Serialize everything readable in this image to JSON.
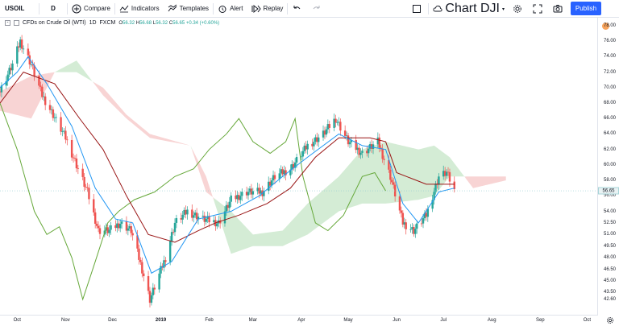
{
  "toolbar": {
    "symbol": "USOIL",
    "interval": "D",
    "compare": "Compare",
    "indicators": "Indicators",
    "templates": "Templates",
    "alert": "Alert",
    "replay": "Replay",
    "layout_name": "Chart DJI",
    "publish": "Publish"
  },
  "legend": {
    "title": "CFDs on Crude Oil (WTI)",
    "interval": "1D",
    "exchange": "FXCM",
    "o_label": "O",
    "o": "56.32",
    "h_label": "H",
    "h": "56.68",
    "l_label": "L",
    "l": "56.32",
    "c_label": "C",
    "c": "56.65",
    "change": "+0.34 (+0.60%)"
  },
  "colors": {
    "up": "#26a69a",
    "down": "#ef5350",
    "tenkan": "#2196f3",
    "kijun": "#991515",
    "chikou": "#66a83a",
    "kumo_up": "#d4ecd5",
    "kumo_down": "#f8d4d4",
    "accent": "#2962ff"
  },
  "last_price": "56.65",
  "chart_data": {
    "type": "candlestick",
    "indicator": "Ichimoku Cloud",
    "x_ticks": [
      "Oct",
      "Nov",
      "Dec",
      "2019",
      "Feb",
      "Mar",
      "Apr",
      "May",
      "Jun",
      "Jul",
      "Aug",
      "Sep",
      "Oct"
    ],
    "y_ticks": [
      "78.00",
      "76.00",
      "74.00",
      "72.00",
      "70.00",
      "68.00",
      "66.00",
      "64.00",
      "62.00",
      "60.00",
      "58.00",
      "56.00",
      "54.00",
      "52.50",
      "51.00",
      "49.50",
      "48.00",
      "46.50",
      "45.00",
      "43.50",
      "42.60"
    ],
    "price_path": [
      [
        "2018-09-20",
        69.5
      ],
      [
        "2018-09-28",
        73.0
      ],
      [
        "2018-10-03",
        76.0
      ],
      [
        "2018-10-10",
        73.0
      ],
      [
        "2018-10-17",
        69.0
      ],
      [
        "2018-10-24",
        66.5
      ],
      [
        "2018-11-01",
        63.5
      ],
      [
        "2018-11-08",
        60.0
      ],
      [
        "2018-11-15",
        56.5
      ],
      [
        "2018-11-22",
        51.5
      ],
      [
        "2018-11-29",
        51.5
      ],
      [
        "2018-12-06",
        52.5
      ],
      [
        "2018-12-13",
        51.5
      ],
      [
        "2018-12-20",
        46.5
      ],
      [
        "2018-12-25",
        42.6
      ],
      [
        "2019-01-04",
        48.0
      ],
      [
        "2019-01-10",
        52.5
      ],
      [
        "2019-01-18",
        54.0
      ],
      [
        "2019-01-28",
        53.0
      ],
      [
        "2019-02-07",
        52.5
      ],
      [
        "2019-02-15",
        55.5
      ],
      [
        "2019-02-25",
        56.5
      ],
      [
        "2019-03-07",
        56.5
      ],
      [
        "2019-03-15",
        58.5
      ],
      [
        "2019-03-25",
        59.5
      ],
      [
        "2019-04-05",
        62.5
      ],
      [
        "2019-04-15",
        64.0
      ],
      [
        "2019-04-23",
        66.0
      ],
      [
        "2019-05-01",
        63.0
      ],
      [
        "2019-05-10",
        61.5
      ],
      [
        "2019-05-20",
        63.0
      ],
      [
        "2019-05-28",
        58.5
      ],
      [
        "2019-06-05",
        52.5
      ],
      [
        "2019-06-12",
        51.5
      ],
      [
        "2019-06-20",
        53.5
      ],
      [
        "2019-06-28",
        58.5
      ],
      [
        "2019-07-03",
        59.0
      ],
      [
        "2019-07-08",
        56.65
      ]
    ],
    "tenkan": [
      [
        "2018-09-20",
        70.0
      ],
      [
        "2018-10-01",
        72.0
      ],
      [
        "2018-10-08",
        74.0
      ],
      [
        "2018-10-20",
        70.5
      ],
      [
        "2018-11-05",
        65.0
      ],
      [
        "2018-11-20",
        57.0
      ],
      [
        "2018-12-03",
        53.0
      ],
      [
        "2018-12-14",
        52.5
      ],
      [
        "2018-12-26",
        46.0
      ],
      [
        "2019-01-08",
        47.5
      ],
      [
        "2019-01-25",
        53.0
      ],
      [
        "2019-02-15",
        54.0
      ],
      [
        "2019-03-05",
        56.0
      ],
      [
        "2019-03-20",
        58.5
      ],
      [
        "2019-04-05",
        61.0
      ],
      [
        "2019-04-25",
        64.0
      ],
      [
        "2019-05-10",
        62.5
      ],
      [
        "2019-05-25",
        62.0
      ],
      [
        "2019-06-05",
        55.0
      ],
      [
        "2019-06-15",
        52.5
      ],
      [
        "2019-06-28",
        56.5
      ],
      [
        "2019-07-08",
        57.0
      ]
    ],
    "kijun": [
      [
        "2018-09-20",
        68.0
      ],
      [
        "2018-10-05",
        72.0
      ],
      [
        "2018-10-25",
        70.5
      ],
      [
        "2018-11-10",
        66.0
      ],
      [
        "2018-11-25",
        62.0
      ],
      [
        "2018-12-10",
        56.0
      ],
      [
        "2018-12-24",
        51.0
      ],
      [
        "2019-01-10",
        50.0
      ],
      [
        "2019-01-25",
        51.5
      ],
      [
        "2019-02-05",
        52.5
      ],
      [
        "2019-02-20",
        53.5
      ],
      [
        "2019-03-10",
        55.0
      ],
      [
        "2019-03-25",
        57.0
      ],
      [
        "2019-04-10",
        61.0
      ],
      [
        "2019-04-25",
        63.5
      ],
      [
        "2019-05-15",
        63.5
      ],
      [
        "2019-05-25",
        63.0
      ],
      [
        "2019-06-01",
        59.0
      ],
      [
        "2019-06-20",
        57.5
      ],
      [
        "2019-07-08",
        57.5
      ]
    ],
    "chikou": [
      [
        "2018-09-20",
        68.0
      ],
      [
        "2018-10-01",
        62.0
      ],
      [
        "2018-10-12",
        54.0
      ],
      [
        "2018-10-20",
        51.0
      ],
      [
        "2018-10-28",
        52.0
      ],
      [
        "2018-11-05",
        48.0
      ],
      [
        "2018-11-12",
        42.6
      ],
      [
        "2018-11-20",
        47.5
      ],
      [
        "2018-11-28",
        52.5
      ],
      [
        "2018-12-05",
        54.0
      ],
      [
        "2018-12-15",
        55.5
      ],
      [
        "2018-12-28",
        56.5
      ],
      [
        "2019-01-10",
        58.5
      ],
      [
        "2019-01-22",
        59.5
      ],
      [
        "2019-02-01",
        62.0
      ],
      [
        "2019-02-12",
        64.0
      ],
      [
        "2019-02-20",
        66.0
      ],
      [
        "2019-03-01",
        63.0
      ],
      [
        "2019-03-12",
        61.5
      ],
      [
        "2019-03-22",
        63.0
      ],
      [
        "2019-03-28",
        66.0
      ],
      [
        "2019-04-02",
        58.5
      ],
      [
        "2019-04-10",
        52.5
      ],
      [
        "2019-04-18",
        51.5
      ],
      [
        "2019-04-28",
        53.5
      ],
      [
        "2019-05-10",
        58.5
      ],
      [
        "2019-05-18",
        59.0
      ],
      [
        "2019-05-25",
        56.65
      ]
    ],
    "span_a": [
      [
        "2018-09-20",
        67.0
      ],
      [
        "2018-10-10",
        66.0
      ],
      [
        "2018-10-25",
        72.0
      ],
      [
        "2018-11-08",
        73.5
      ],
      [
        "2018-11-25",
        69.0
      ],
      [
        "2018-12-10",
        66.0
      ],
      [
        "2018-12-25",
        63.5
      ],
      [
        "2019-01-20",
        62.5
      ],
      [
        "2019-01-30",
        56.5
      ],
      [
        "2019-02-15",
        54.0
      ],
      [
        "2019-03-01",
        51.0
      ],
      [
        "2019-03-20",
        51.5
      ],
      [
        "2019-04-05",
        55.0
      ],
      [
        "2019-04-25",
        58.5
      ],
      [
        "2019-05-10",
        62.0
      ],
      [
        "2019-05-25",
        63.0
      ],
      [
        "2019-06-15",
        62.0
      ],
      [
        "2019-06-25",
        62.5
      ],
      [
        "2019-07-05",
        61.0
      ],
      [
        "2019-07-20",
        57.0
      ],
      [
        "2019-08-10",
        58.0
      ]
    ],
    "span_b": [
      [
        "2018-09-20",
        69.5
      ],
      [
        "2018-10-10",
        71.5
      ],
      [
        "2018-10-25",
        72.0
      ],
      [
        "2018-11-08",
        72.0
      ],
      [
        "2018-11-25",
        70.0
      ],
      [
        "2018-12-10",
        66.5
      ],
      [
        "2018-12-25",
        64.0
      ],
      [
        "2019-01-20",
        62.5
      ],
      [
        "2019-01-30",
        58.5
      ],
      [
        "2019-02-15",
        48.5
      ],
      [
        "2019-03-01",
        49.5
      ],
      [
        "2019-03-20",
        49.5
      ],
      [
        "2019-04-05",
        51.0
      ],
      [
        "2019-04-25",
        54.0
      ],
      [
        "2019-05-10",
        55.0
      ],
      [
        "2019-05-25",
        55.0
      ],
      [
        "2019-06-15",
        55.5
      ],
      [
        "2019-06-25",
        56.0
      ],
      [
        "2019-07-05",
        58.5
      ],
      [
        "2019-07-20",
        58.5
      ],
      [
        "2019-08-10",
        58.5
      ]
    ]
  }
}
